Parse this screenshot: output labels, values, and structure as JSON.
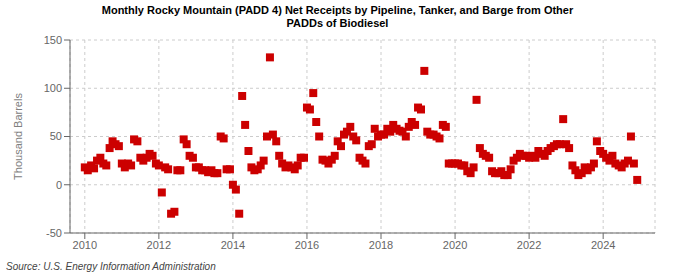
{
  "chart_data": {
    "type": "scatter",
    "title": "Monthly Rocky Mountain (PADD 4) Net Receipts by Pipeline, Tanker, and Barge from Other\nPADDs of Biodiesel",
    "ylabel": "Thousand Barrels",
    "source": "Source: U.S. Energy Information Administration",
    "color": "#cc0000",
    "marker": "square",
    "grid": true,
    "xlim": [
      2009.6,
      2025.4
    ],
    "xticks": [
      2010,
      2012,
      2014,
      2016,
      2018,
      2020,
      2022,
      2024
    ],
    "ylim": [
      -50,
      150
    ],
    "yticks": [
      -50,
      0,
      50,
      100,
      150
    ],
    "x": [
      2010.0,
      2010.08,
      2010.17,
      2010.25,
      2010.33,
      2010.42,
      2010.5,
      2010.58,
      2010.67,
      2010.75,
      2010.83,
      2010.92,
      2011.0,
      2011.08,
      2011.17,
      2011.25,
      2011.33,
      2011.42,
      2011.5,
      2011.58,
      2011.67,
      2011.75,
      2011.83,
      2011.92,
      2012.0,
      2012.08,
      2012.17,
      2012.25,
      2012.33,
      2012.42,
      2012.5,
      2012.58,
      2012.67,
      2012.75,
      2012.83,
      2012.92,
      2013.0,
      2013.08,
      2013.17,
      2013.25,
      2013.33,
      2013.42,
      2013.5,
      2013.58,
      2013.67,
      2013.75,
      2013.83,
      2013.92,
      2014.0,
      2014.08,
      2014.17,
      2014.25,
      2014.33,
      2014.42,
      2014.5,
      2014.58,
      2014.67,
      2014.75,
      2014.83,
      2014.92,
      2015.0,
      2015.08,
      2015.17,
      2015.25,
      2015.33,
      2015.42,
      2015.5,
      2015.58,
      2015.67,
      2015.75,
      2015.83,
      2015.92,
      2016.0,
      2016.08,
      2016.17,
      2016.25,
      2016.33,
      2016.42,
      2016.5,
      2016.58,
      2016.67,
      2016.75,
      2016.83,
      2016.92,
      2017.0,
      2017.08,
      2017.17,
      2017.25,
      2017.33,
      2017.42,
      2017.5,
      2017.58,
      2017.67,
      2017.75,
      2017.83,
      2017.92,
      2018.0,
      2018.08,
      2018.17,
      2018.25,
      2018.33,
      2018.42,
      2018.5,
      2018.58,
      2018.67,
      2018.75,
      2018.83,
      2018.92,
      2019.0,
      2019.08,
      2019.17,
      2019.25,
      2019.33,
      2019.42,
      2019.5,
      2019.58,
      2019.67,
      2019.75,
      2019.83,
      2019.92,
      2020.0,
      2020.08,
      2020.17,
      2020.25,
      2020.33,
      2020.42,
      2020.5,
      2020.58,
      2020.67,
      2020.75,
      2020.83,
      2020.92,
      2021.0,
      2021.08,
      2021.17,
      2021.25,
      2021.33,
      2021.42,
      2021.5,
      2021.58,
      2021.67,
      2021.75,
      2021.83,
      2021.92,
      2022.0,
      2022.08,
      2022.17,
      2022.25,
      2022.33,
      2022.42,
      2022.5,
      2022.58,
      2022.67,
      2022.75,
      2022.83,
      2022.92,
      2023.0,
      2023.08,
      2023.17,
      2023.25,
      2023.33,
      2023.42,
      2023.5,
      2023.58,
      2023.67,
      2023.75,
      2023.83,
      2023.92,
      2024.0,
      2024.08,
      2024.17,
      2024.25,
      2024.33,
      2024.42,
      2024.5,
      2024.58,
      2024.67,
      2024.75,
      2024.83,
      2024.92
    ],
    "values": [
      18,
      15,
      20,
      17,
      25,
      28,
      22,
      20,
      38,
      45,
      42,
      40,
      22,
      18,
      22,
      20,
      47,
      45,
      28,
      25,
      28,
      32,
      30,
      22,
      20,
      -8,
      18,
      16,
      -30,
      -28,
      15,
      15,
      47,
      42,
      30,
      28,
      18,
      18,
      15,
      15,
      13,
      15,
      12,
      12,
      50,
      48,
      16,
      16,
      0,
      -5,
      -30,
      92,
      62,
      35,
      18,
      15,
      16,
      20,
      25,
      50,
      132,
      52,
      45,
      30,
      22,
      18,
      20,
      18,
      16,
      20,
      28,
      28,
      80,
      78,
      95,
      65,
      50,
      26,
      25,
      22,
      26,
      30,
      45,
      40,
      52,
      55,
      60,
      50,
      46,
      28,
      25,
      22,
      40,
      42,
      58,
      50,
      52,
      52,
      58,
      55,
      62,
      58,
      56,
      55,
      50,
      60,
      65,
      62,
      80,
      78,
      118,
      55,
      52,
      52,
      50,
      48,
      62,
      60,
      22,
      22,
      22,
      22,
      20,
      20,
      14,
      12,
      18,
      88,
      38,
      32,
      30,
      28,
      14,
      12,
      12,
      14,
      10,
      10,
      16,
      25,
      28,
      32,
      30,
      30,
      28,
      30,
      28,
      35,
      32,
      30,
      35,
      38,
      40,
      42,
      42,
      68,
      42,
      38,
      20,
      15,
      10,
      12,
      18,
      15,
      18,
      22,
      45,
      35,
      32,
      28,
      25,
      30,
      22,
      20,
      18,
      22,
      25,
      50,
      22,
      5
    ]
  }
}
